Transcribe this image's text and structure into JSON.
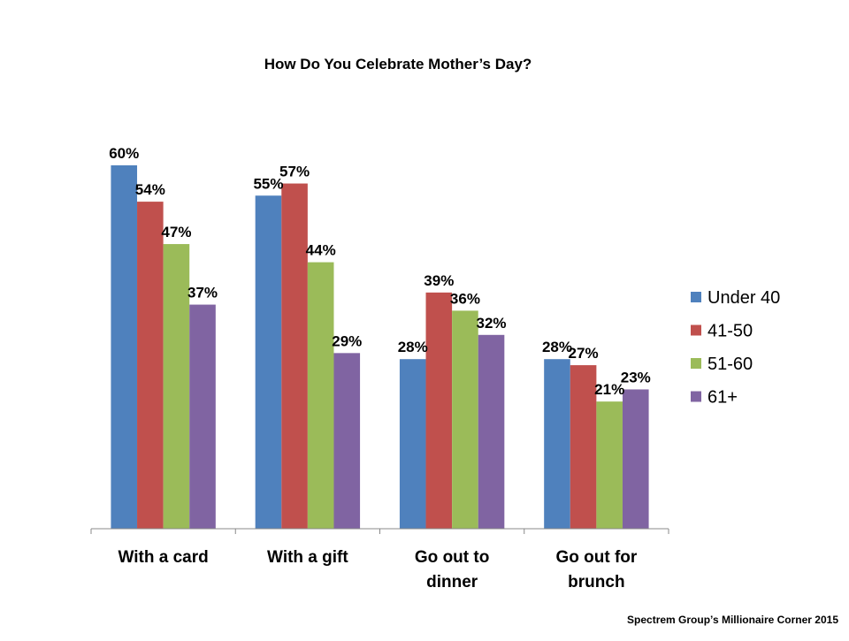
{
  "chart_data": {
    "type": "bar",
    "title": "How Do You Celebrate Mother’s Day?",
    "xlabel": "",
    "ylabel": "",
    "ylim": [
      0,
      60
    ],
    "grid": false,
    "legend_position": "right",
    "categories": [
      "With a card",
      "With a gift",
      "Go out to dinner",
      "Go out for brunch"
    ],
    "series": [
      {
        "name": "Under 40",
        "color": "#4F81BD",
        "values": [
          60,
          55,
          28,
          28
        ]
      },
      {
        "name": "41-50",
        "color": "#C0504D",
        "values": [
          54,
          57,
          39,
          27
        ]
      },
      {
        "name": "51-60",
        "color": "#9BBB59",
        "values": [
          47,
          44,
          36,
          21
        ]
      },
      {
        "name": "61+",
        "color": "#8064A2",
        "values": [
          37,
          29,
          32,
          23
        ]
      }
    ],
    "data_labels": [
      [
        "60%",
        "55%",
        "28%",
        "28%"
      ],
      [
        "54%",
        "57%",
        "39%",
        "27%"
      ],
      [
        "47%",
        "44%",
        "36%",
        "21%"
      ],
      [
        "37%",
        "29%",
        "32%",
        "23%"
      ]
    ],
    "source": "Spectrem Group’s Millionaire Corner 2015"
  }
}
